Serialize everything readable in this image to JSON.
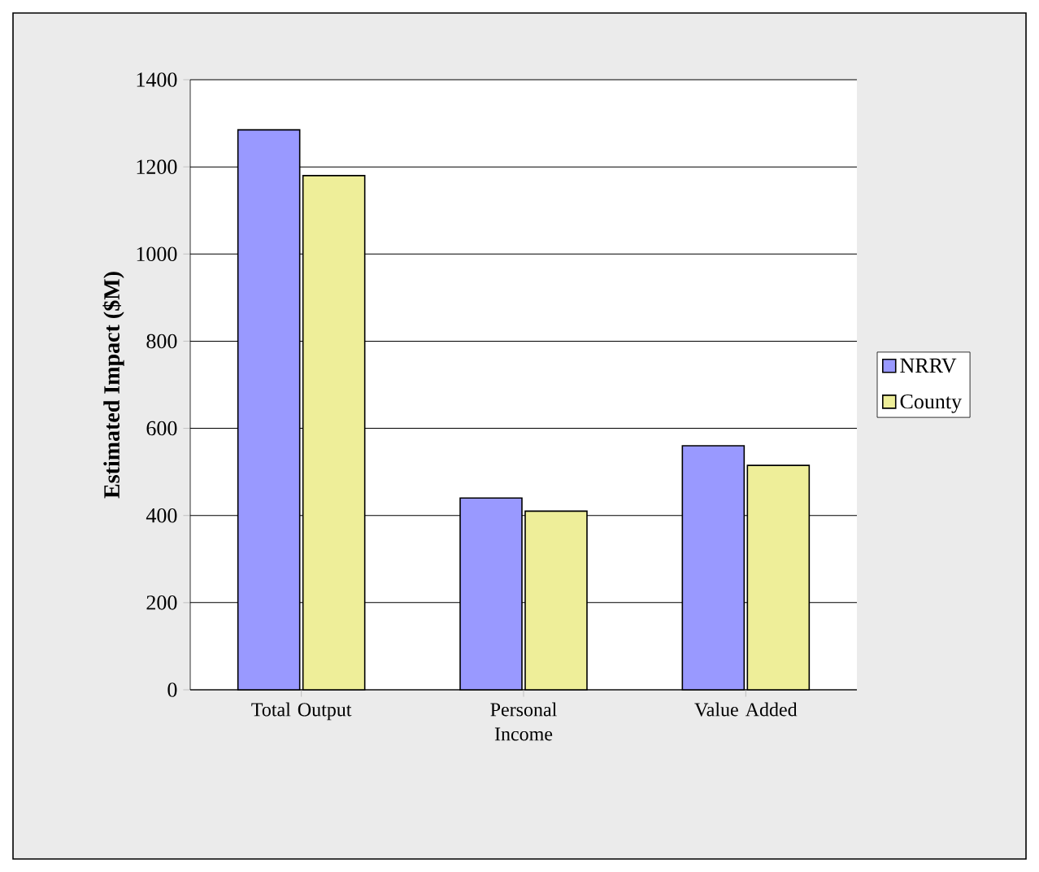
{
  "chart_data": {
    "type": "bar",
    "ylabel": "Estimated Impact ($M)",
    "categories": [
      "Total Output",
      "Personal Income",
      "Value Added"
    ],
    "series": [
      {
        "name": "NRRV",
        "color": "#9999ff",
        "values": [
          1285,
          440,
          560
        ]
      },
      {
        "name": "County",
        "color": "#eeee99",
        "values": [
          1180,
          410,
          515
        ]
      }
    ],
    "ylim": [
      0,
      1400
    ],
    "yticks": [
      0,
      200,
      400,
      600,
      800,
      1000,
      1200,
      1400
    ],
    "grid": "y",
    "legend": "right"
  }
}
